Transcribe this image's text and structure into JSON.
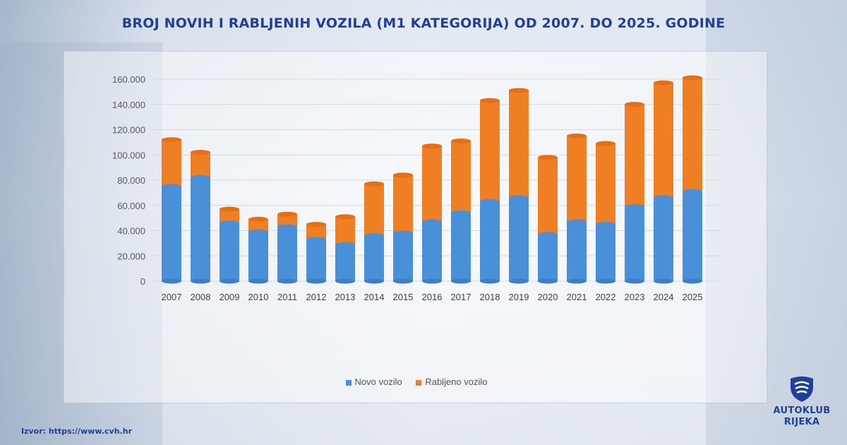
{
  "title": "BROJ NOVIH I RABLJENIH VOZILA (M1 KATEGORIJA) OD 2007. DO 2025. GODINE",
  "source": "Izvor: https://www.cvh.hr",
  "logo": {
    "line1": "AUTOKLUB",
    "line2": "RIJEKA",
    "icon": "shield-icon"
  },
  "colors": {
    "accent": "#1f3f99",
    "novo": "#4a90d9",
    "rabljeno": "#f07f24"
  },
  "chart_data": {
    "type": "bar",
    "stacked": true,
    "title": "BROJ NOVIH I RABLJENIH VOZILA (M1 KATEGORIJA) OD 2007. DO 2025. GODINE",
    "xlabel": "",
    "ylabel": "",
    "ylim": [
      0,
      160000
    ],
    "yticks": [
      "0",
      "20.000",
      "40.000",
      "60.000",
      "80.000",
      "100.000",
      "120.000",
      "140.000",
      "160.000"
    ],
    "categories": [
      "2007",
      "2008",
      "2009",
      "2010",
      "2011",
      "2012",
      "2013",
      "2014",
      "2015",
      "2016",
      "2017",
      "2018",
      "2019",
      "2020",
      "2021",
      "2022",
      "2023",
      "2024",
      "2025"
    ],
    "series": [
      {
        "name": "Novo vozilo",
        "color": "#4a90d9",
        "values": [
          75000,
          82000,
          46000,
          39000,
          43000,
          33000,
          29000,
          36000,
          38000,
          47000,
          54000,
          63000,
          66000,
          37000,
          47000,
          45000,
          59000,
          66000,
          71000
        ]
      },
      {
        "name": "Rabljeno vozilo",
        "color": "#f07f24",
        "values": [
          37000,
          20000,
          11000,
          10000,
          10000,
          12000,
          22000,
          41000,
          46000,
          60000,
          57000,
          80000,
          85000,
          61000,
          68000,
          64000,
          81000,
          91000,
          90000
        ]
      }
    ],
    "grid": true,
    "legend": "bottom"
  }
}
